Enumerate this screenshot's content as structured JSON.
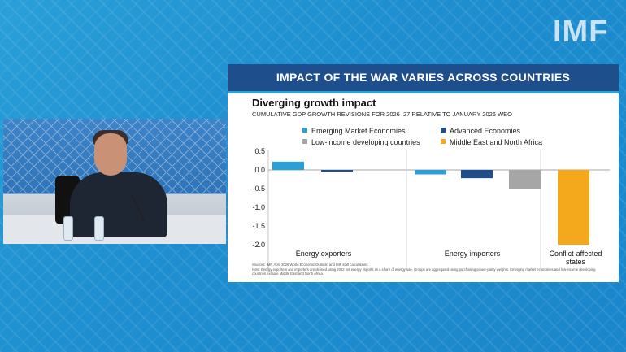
{
  "logo_text": "IMF",
  "slide": {
    "header": "IMPACT OF THE WAR VARIES ACROSS COUNTRIES",
    "sources": "Sources: IMF, April 2026 World Economic Outlook; and IMF staff calculations.",
    "note": "Note: Energy exporters and importers are defined using 2022 net energy imports as a share of energy use. Groups are aggregated using purchasing-power-parity weights. Emerging market economies and low-income developing countries exclude Middle East and North Africa."
  },
  "colors": {
    "header_bg": "#1f4e8c",
    "emerging": "#2a9fd8",
    "advanced": "#1f4e8c",
    "low_income": "#a6a6a6",
    "mena": "#f4a81c"
  },
  "chart_data": {
    "type": "bar",
    "title": "Diverging growth impact",
    "subtitle": "CUMULATIVE GDP GROWTH REVISIONS FOR 2026–27 RELATIVE TO JANUARY 2026 WEO",
    "ylim": [
      -2.0,
      0.5
    ],
    "yticks": [
      "0.5",
      "0.0",
      "-0.5",
      "-1.0",
      "-1.5",
      "-2.0"
    ],
    "ytick_values": [
      0.5,
      0.0,
      -0.5,
      -1.0,
      -1.5,
      -2.0
    ],
    "groups": [
      "Energy exporters",
      "Energy importers",
      "Conflict-affected states"
    ],
    "group_label_lines": [
      [
        "Energy exporters"
      ],
      [
        "Energy importers"
      ],
      [
        "Conflict-affected",
        "states"
      ]
    ],
    "legend": [
      {
        "name": "Emerging Market Economies",
        "color": "#2a9fd8"
      },
      {
        "name": "Advanced Economies",
        "color": "#1f4e8c"
      },
      {
        "name": "Low-income developing countries",
        "color": "#a6a6a6"
      },
      {
        "name": "Middle East and North Africa",
        "color": "#f4a81c"
      }
    ],
    "bars": [
      {
        "group": "Energy exporters",
        "series": "Emerging Market Economies",
        "value": 0.22,
        "color": "#2a9fd8"
      },
      {
        "group": "Energy exporters",
        "series": "Advanced Economies",
        "value": -0.05,
        "color": "#1f4e8c"
      },
      {
        "group": "Energy importers",
        "series": "Emerging Market Economies",
        "value": -0.12,
        "color": "#2a9fd8"
      },
      {
        "group": "Energy importers",
        "series": "Advanced Economies",
        "value": -0.22,
        "color": "#1f4e8c"
      },
      {
        "group": "Energy importers",
        "series": "Low-income developing countries",
        "value": -0.5,
        "color": "#a6a6a6"
      },
      {
        "group": "Conflict-affected states",
        "series": "Middle East and North Africa",
        "value": -2.0,
        "color": "#f4a81c"
      }
    ]
  }
}
